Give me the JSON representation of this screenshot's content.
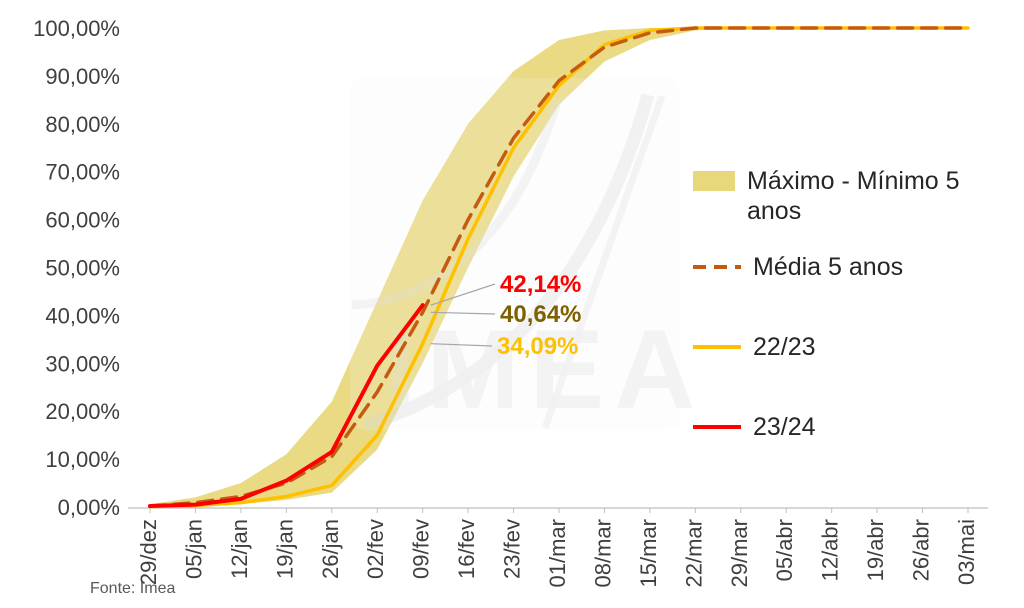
{
  "source": "Fonte: Imea",
  "chart_data": {
    "type": "line",
    "title": "",
    "xlabel": "",
    "ylabel": "",
    "ylim": [
      0,
      100
    ],
    "grid": false,
    "legend_position": "right",
    "watermark": "IMEA",
    "categories": [
      "29/dez",
      "05/jan",
      "12/jan",
      "19/jan",
      "26/jan",
      "02/fev",
      "09/fev",
      "16/fev",
      "23/fev",
      "01/mar",
      "08/mar",
      "15/mar",
      "22/mar",
      "29/mar",
      "05/abr",
      "12/abr",
      "19/abr",
      "26/abr",
      "03/mai"
    ],
    "y_ticks": [
      "100,00%",
      "90,00%",
      "80,00%",
      "70,00%",
      "60,00%",
      "50,00%",
      "40,00%",
      "30,00%",
      "20,00%",
      "10,00%",
      "0,00%"
    ],
    "band": {
      "name": "Máximo - Mínimo 5 anos",
      "color": "#e8d87c",
      "upper": [
        0.6,
        2,
        5,
        11,
        22,
        43,
        64,
        80,
        91,
        97.5,
        99.5,
        100,
        100,
        100,
        100,
        100,
        100,
        100,
        100
      ],
      "lower": [
        0,
        0.2,
        0.6,
        1.5,
        3,
        12,
        30,
        50,
        69,
        84,
        93,
        97.5,
        99.5,
        100,
        100,
        100,
        100,
        100,
        100
      ]
    },
    "series": [
      {
        "name": "22/23",
        "style": "solid",
        "color": "#ffc000",
        "width": 3.5,
        "values": [
          0.1,
          0.3,
          0.9,
          2.2,
          4.5,
          15,
          34.09,
          56,
          75,
          88,
          96.5,
          99.5,
          100,
          100,
          100,
          100,
          100,
          100,
          100
        ]
      },
      {
        "name": "Média 5 anos",
        "style": "dashed",
        "color": "#c55a11",
        "width": 3.5,
        "values": [
          0.2,
          0.9,
          2.2,
          5,
          10.5,
          24,
          40.64,
          60,
          77,
          89,
          96,
          99,
          100,
          100,
          100,
          100,
          100,
          100,
          100
        ]
      },
      {
        "name": "23/24",
        "style": "solid",
        "color": "#ff0000",
        "width": 4,
        "values": [
          0.2,
          0.5,
          1.7,
          5.5,
          11.5,
          29.5,
          42.14,
          null,
          null,
          null,
          null,
          null,
          null,
          null,
          null,
          null,
          null,
          null,
          null
        ]
      }
    ],
    "annotations": [
      {
        "text": "42,14%",
        "color": "#ff0000",
        "xi": 6,
        "value": 42.14,
        "label_x": 500,
        "label_y": 292
      },
      {
        "text": "40,64%",
        "color": "#7f6000",
        "xi": 6,
        "value": 40.64,
        "label_x": 500,
        "label_y": 322
      },
      {
        "text": "34,09%",
        "color": "#ffc000",
        "xi": 6,
        "value": 34.09,
        "label_x": 497,
        "label_y": 354
      }
    ],
    "legend": [
      {
        "label": "Máximo - Mínimo 5 anos",
        "type": "band",
        "color": "#e8d87c"
      },
      {
        "label": "Média 5 anos",
        "type": "dashed-line",
        "color": "#c55a11"
      },
      {
        "label": "22/23",
        "type": "line",
        "color": "#ffc000"
      },
      {
        "label": "23/24",
        "type": "line",
        "color": "#ff0000"
      }
    ],
    "colors": {
      "band": "#e8d87c",
      "axis_text": "#3f3f3f",
      "axis_line": "#bfbfbf",
      "leader": "#a6a6a6",
      "watermark": "#e3e3e3"
    }
  }
}
